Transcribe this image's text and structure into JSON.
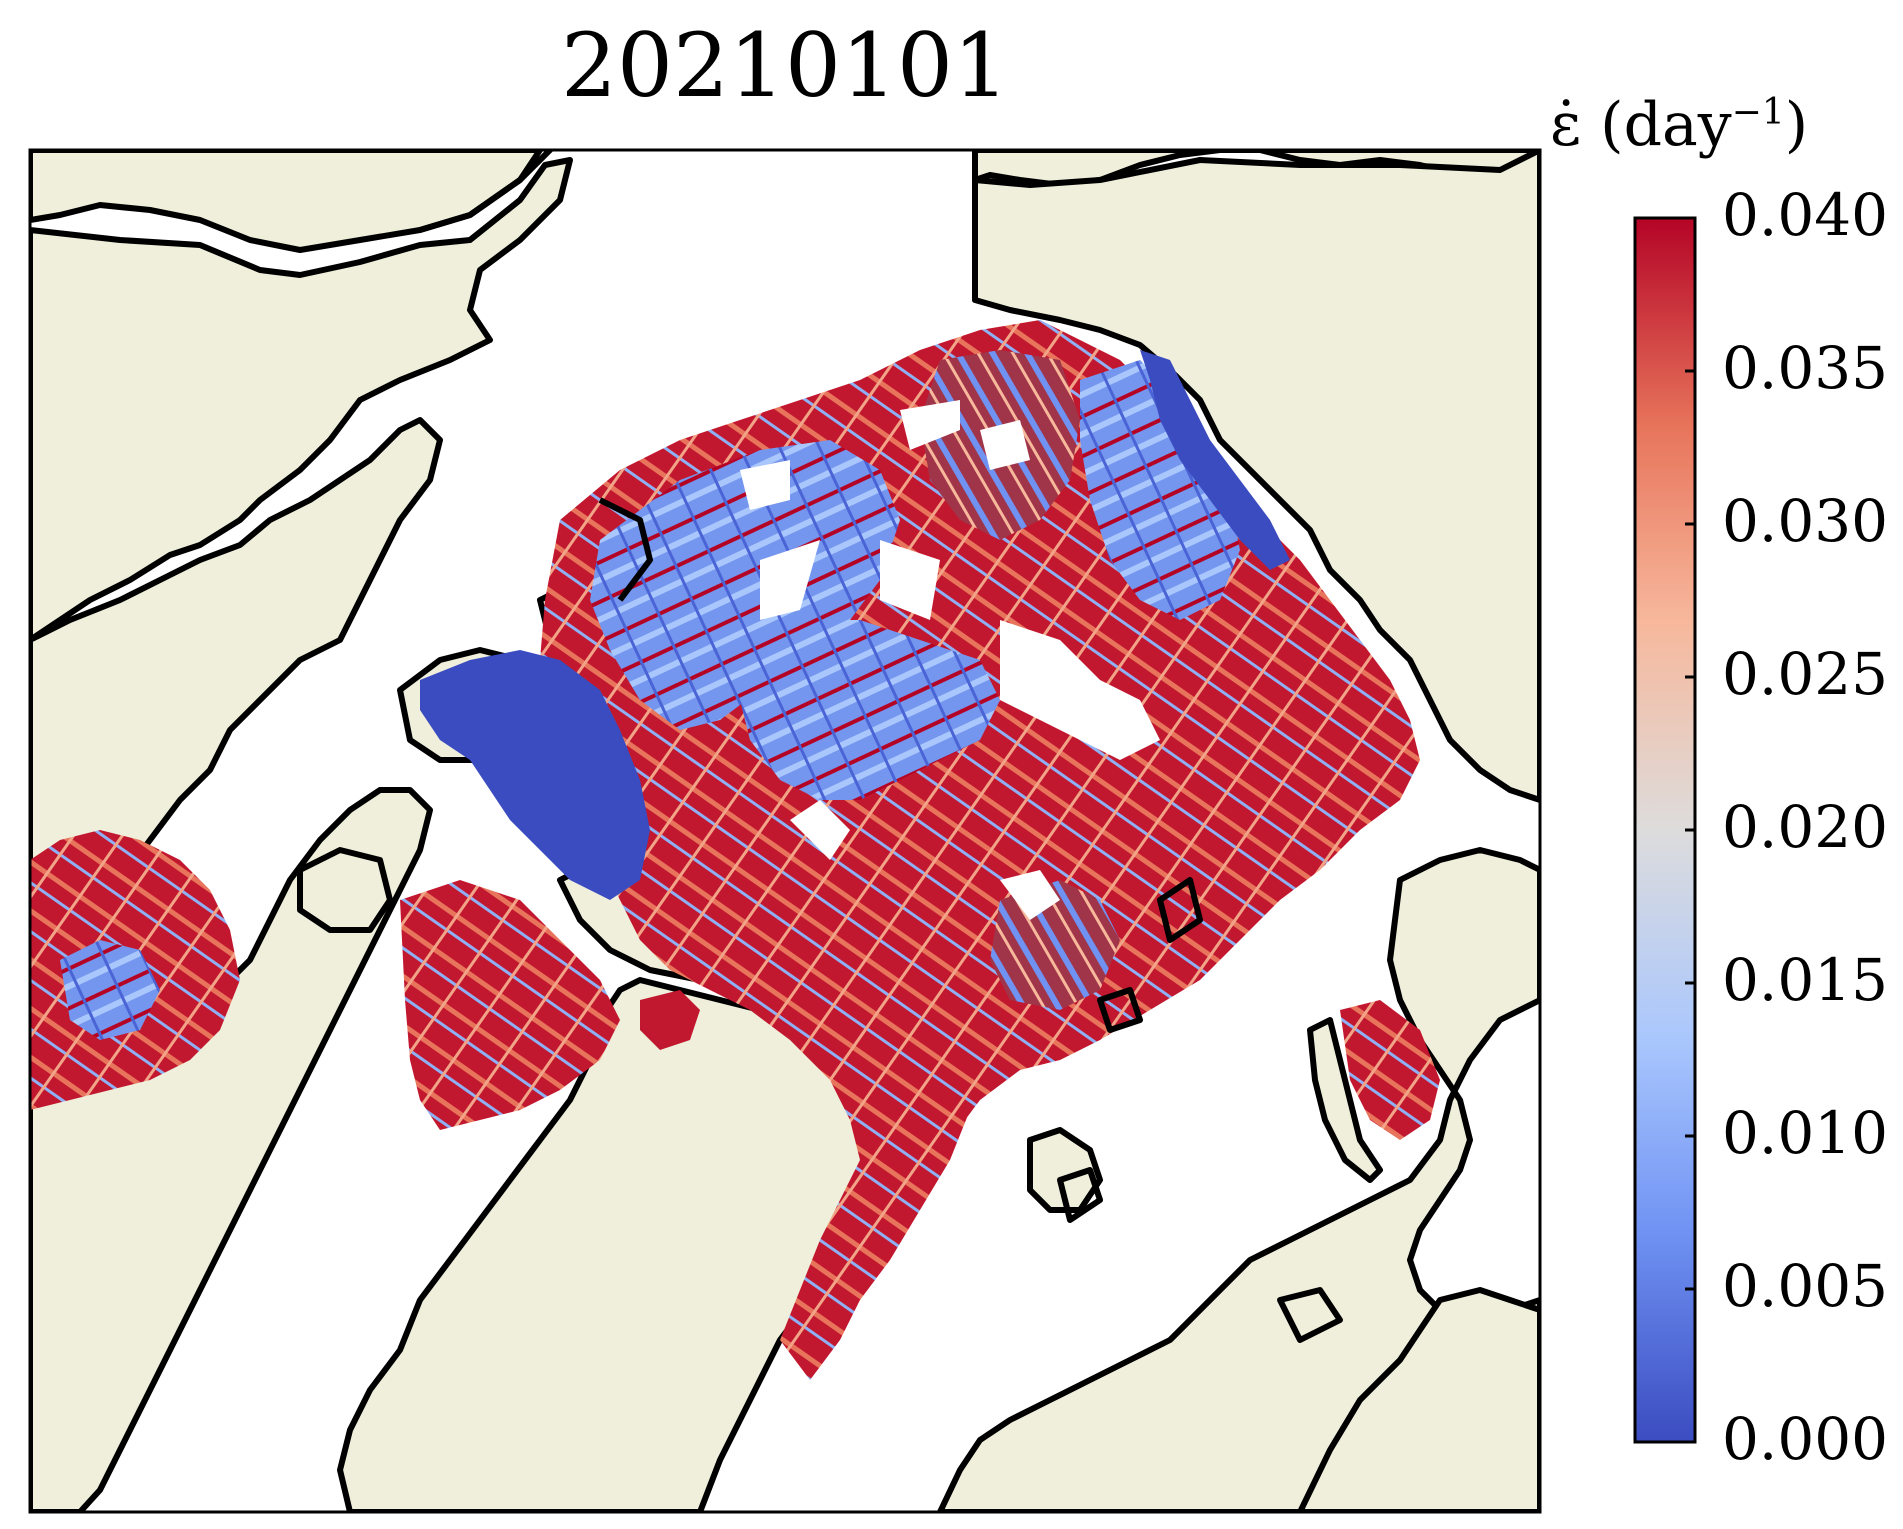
{
  "title": "20210101",
  "colorbar": {
    "label_symbol": "ε̇",
    "label_unit": "(day",
    "label_exp": "−1",
    "label_close": ")",
    "min": 0.0,
    "max": 0.04,
    "ticks": [
      "0.000",
      "0.005",
      "0.010",
      "0.015",
      "0.020",
      "0.025",
      "0.030",
      "0.035",
      "0.040"
    ],
    "colormap": [
      "#3b4cc0",
      "#6f92f3",
      "#aac7fd",
      "#dddcdc",
      "#f7b89c",
      "#e7745b",
      "#b40426"
    ]
  },
  "map": {
    "land_color": "#efefdc",
    "ocean_color": "#ffffff",
    "coastline_color": "#000000"
  }
}
